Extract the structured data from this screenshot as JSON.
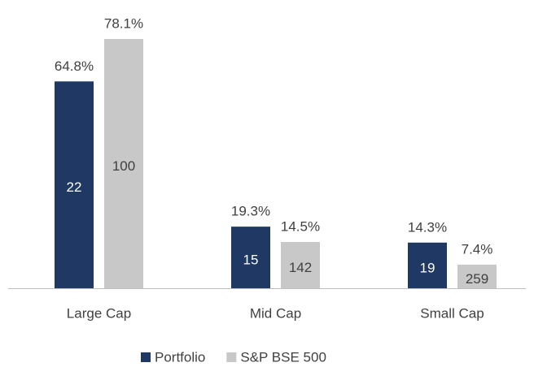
{
  "chart_data": {
    "type": "bar",
    "categories": [
      "Large Cap",
      "Mid Cap",
      "Small Cap"
    ],
    "series": [
      {
        "name": "Portfolio",
        "color": "#1f3864",
        "values": [
          64.8,
          19.3,
          14.3
        ],
        "value_labels": [
          "64.8%",
          "19.3%",
          "14.3%"
        ],
        "counts": [
          22,
          15,
          19
        ],
        "count_color": "#ffffff"
      },
      {
        "name": "S&P BSE 500",
        "color": "#c8c8c8",
        "values": [
          78.1,
          14.5,
          7.4
        ],
        "value_labels": [
          "78.1%",
          "14.5%",
          "7.4%"
        ],
        "counts": [
          100,
          142,
          259
        ],
        "count_color": "#404040"
      }
    ],
    "legend": "bottom"
  }
}
